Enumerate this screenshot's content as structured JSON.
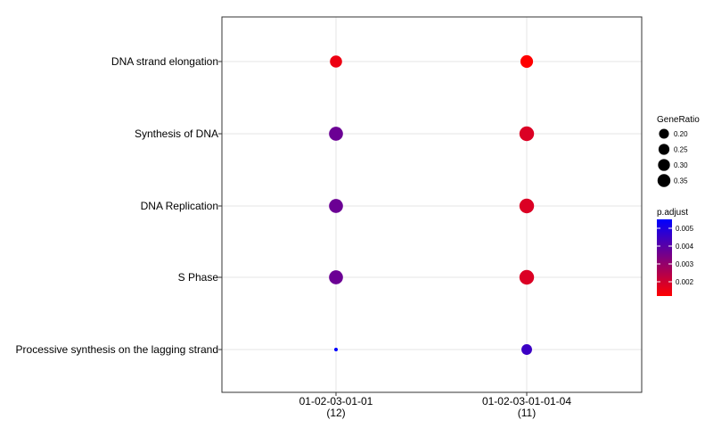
{
  "chart_data": {
    "type": "scatter",
    "title": "",
    "xlabel": "",
    "ylabel": "",
    "x_categories": [
      {
        "line1": "01-02-03-01-01",
        "line2": "(12)"
      },
      {
        "line1": "01-02-03-01-01-04",
        "line2": "(11)"
      }
    ],
    "y_categories": [
      "DNA strand elongation",
      "Synthesis of DNA",
      "DNA Replication",
      "S Phase",
      "Processive synthesis on the lagging strand"
    ],
    "points": [
      {
        "x": "01-02-03-01-01",
        "y": "DNA strand elongation",
        "gene_ratio": 0.25,
        "p_adjust": 0.0015
      },
      {
        "x": "01-02-03-01-01",
        "y": "Synthesis of DNA",
        "gene_ratio": 0.333,
        "p_adjust": 0.0037
      },
      {
        "x": "01-02-03-01-01",
        "y": "DNA Replication",
        "gene_ratio": 0.333,
        "p_adjust": 0.0037
      },
      {
        "x": "01-02-03-01-01",
        "y": "S Phase",
        "gene_ratio": 0.333,
        "p_adjust": 0.0037
      },
      {
        "x": "01-02-03-01-01",
        "y": "Processive synthesis on the lagging strand",
        "gene_ratio": 0.167,
        "p_adjust": 0.0055
      },
      {
        "x": "01-02-03-01-01-04",
        "y": "DNA strand elongation",
        "gene_ratio": 0.273,
        "p_adjust": 0.0012
      },
      {
        "x": "01-02-03-01-01-04",
        "y": "Synthesis of DNA",
        "gene_ratio": 0.364,
        "p_adjust": 0.0018
      },
      {
        "x": "01-02-03-01-01-04",
        "y": "DNA Replication",
        "gene_ratio": 0.364,
        "p_adjust": 0.0018
      },
      {
        "x": "01-02-03-01-01-04",
        "y": "S Phase",
        "gene_ratio": 0.364,
        "p_adjust": 0.0018
      },
      {
        "x": "01-02-03-01-01-04",
        "y": "Processive synthesis on the lagging strand",
        "gene_ratio": 0.182,
        "p_adjust": 0.0045
      }
    ],
    "size_legend": {
      "title": "GeneRatio",
      "breaks": [
        0.2,
        0.25,
        0.3,
        0.35
      ],
      "labels": [
        "0.20",
        "0.25",
        "0.30",
        "0.35"
      ]
    },
    "color_legend": {
      "title": "p.adjust",
      "range": [
        0.0012,
        0.0055
      ],
      "breaks": [
        0.002,
        0.003,
        0.004,
        0.005
      ],
      "labels": [
        "0.002",
        "0.003",
        "0.004",
        "0.005"
      ],
      "low_color": "#FF0000",
      "high_color": "#0000FF"
    },
    "grid": true,
    "legend_position": "right"
  }
}
